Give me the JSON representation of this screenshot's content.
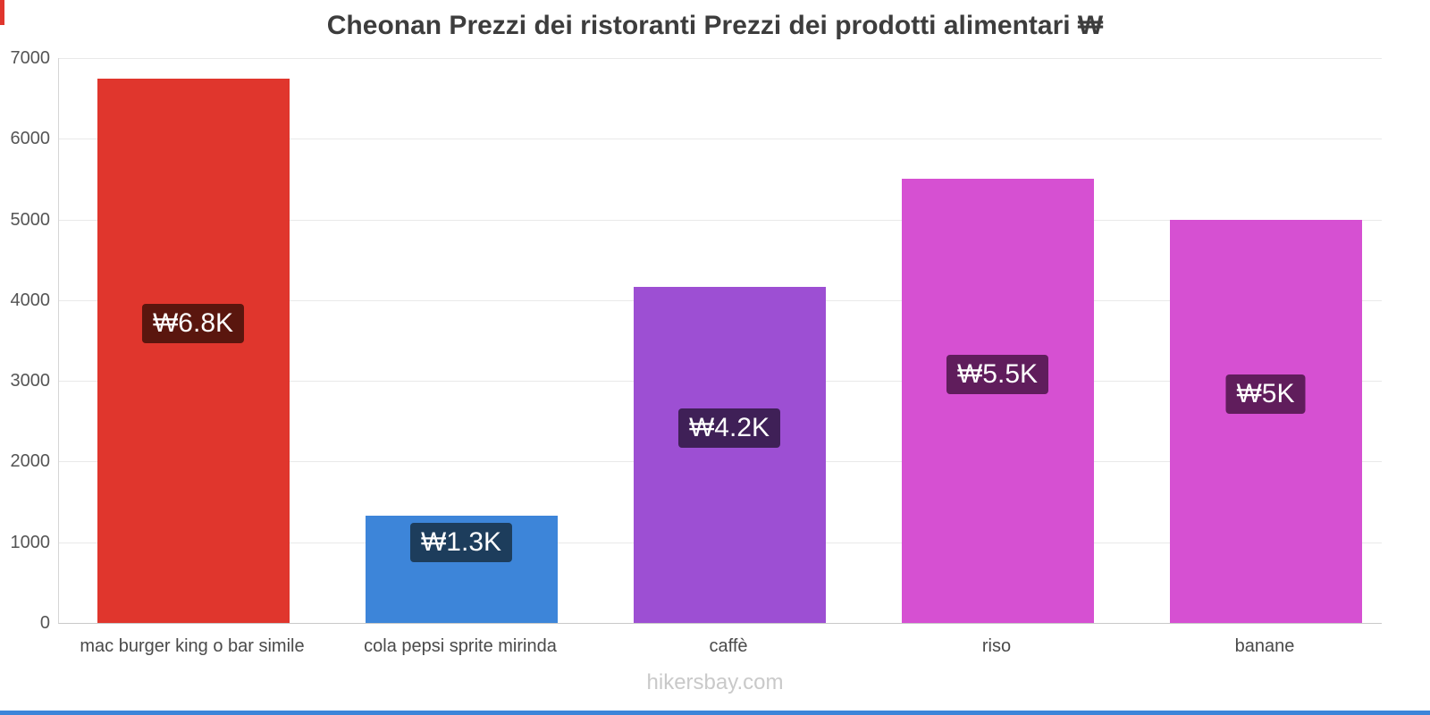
{
  "title": "Cheonan Prezzi dei ristoranti Prezzi dei prodotti alimentari ₩",
  "footer": "hikersbay.com",
  "accents": {
    "top_left_strip": "#e0362d",
    "bottom_strip": "#3d85d9"
  },
  "chart_data": {
    "type": "bar",
    "title": "Cheonan Prezzi dei ristoranti Prezzi dei prodotti alimentari ₩",
    "categories": [
      "mac burger king o bar simile",
      "cola pepsi sprite mirinda",
      "caffè",
      "riso",
      "banane"
    ],
    "values": [
      6750,
      1330,
      4160,
      5500,
      5000
    ],
    "value_labels": [
      "₩6.8K",
      "₩1.3K",
      "₩4.2K",
      "₩5.5K",
      "₩5K"
    ],
    "bar_colors": [
      "#e0362d",
      "#3d85d9",
      "#9d4fd3",
      "#d650d2",
      "#d650d2"
    ],
    "label_bg_colors": [
      "#5a160e",
      "#1d3d5c",
      "#3f2057",
      "#601d5c",
      "#601d5c"
    ],
    "currency": "₩",
    "ylim": [
      0,
      7000
    ],
    "yticks": [
      0,
      1000,
      2000,
      3000,
      4000,
      5000,
      6000,
      7000
    ],
    "grid": true,
    "legend_position": "none",
    "xlabel": "",
    "ylabel": "",
    "watermark": "hikersbay.com"
  }
}
